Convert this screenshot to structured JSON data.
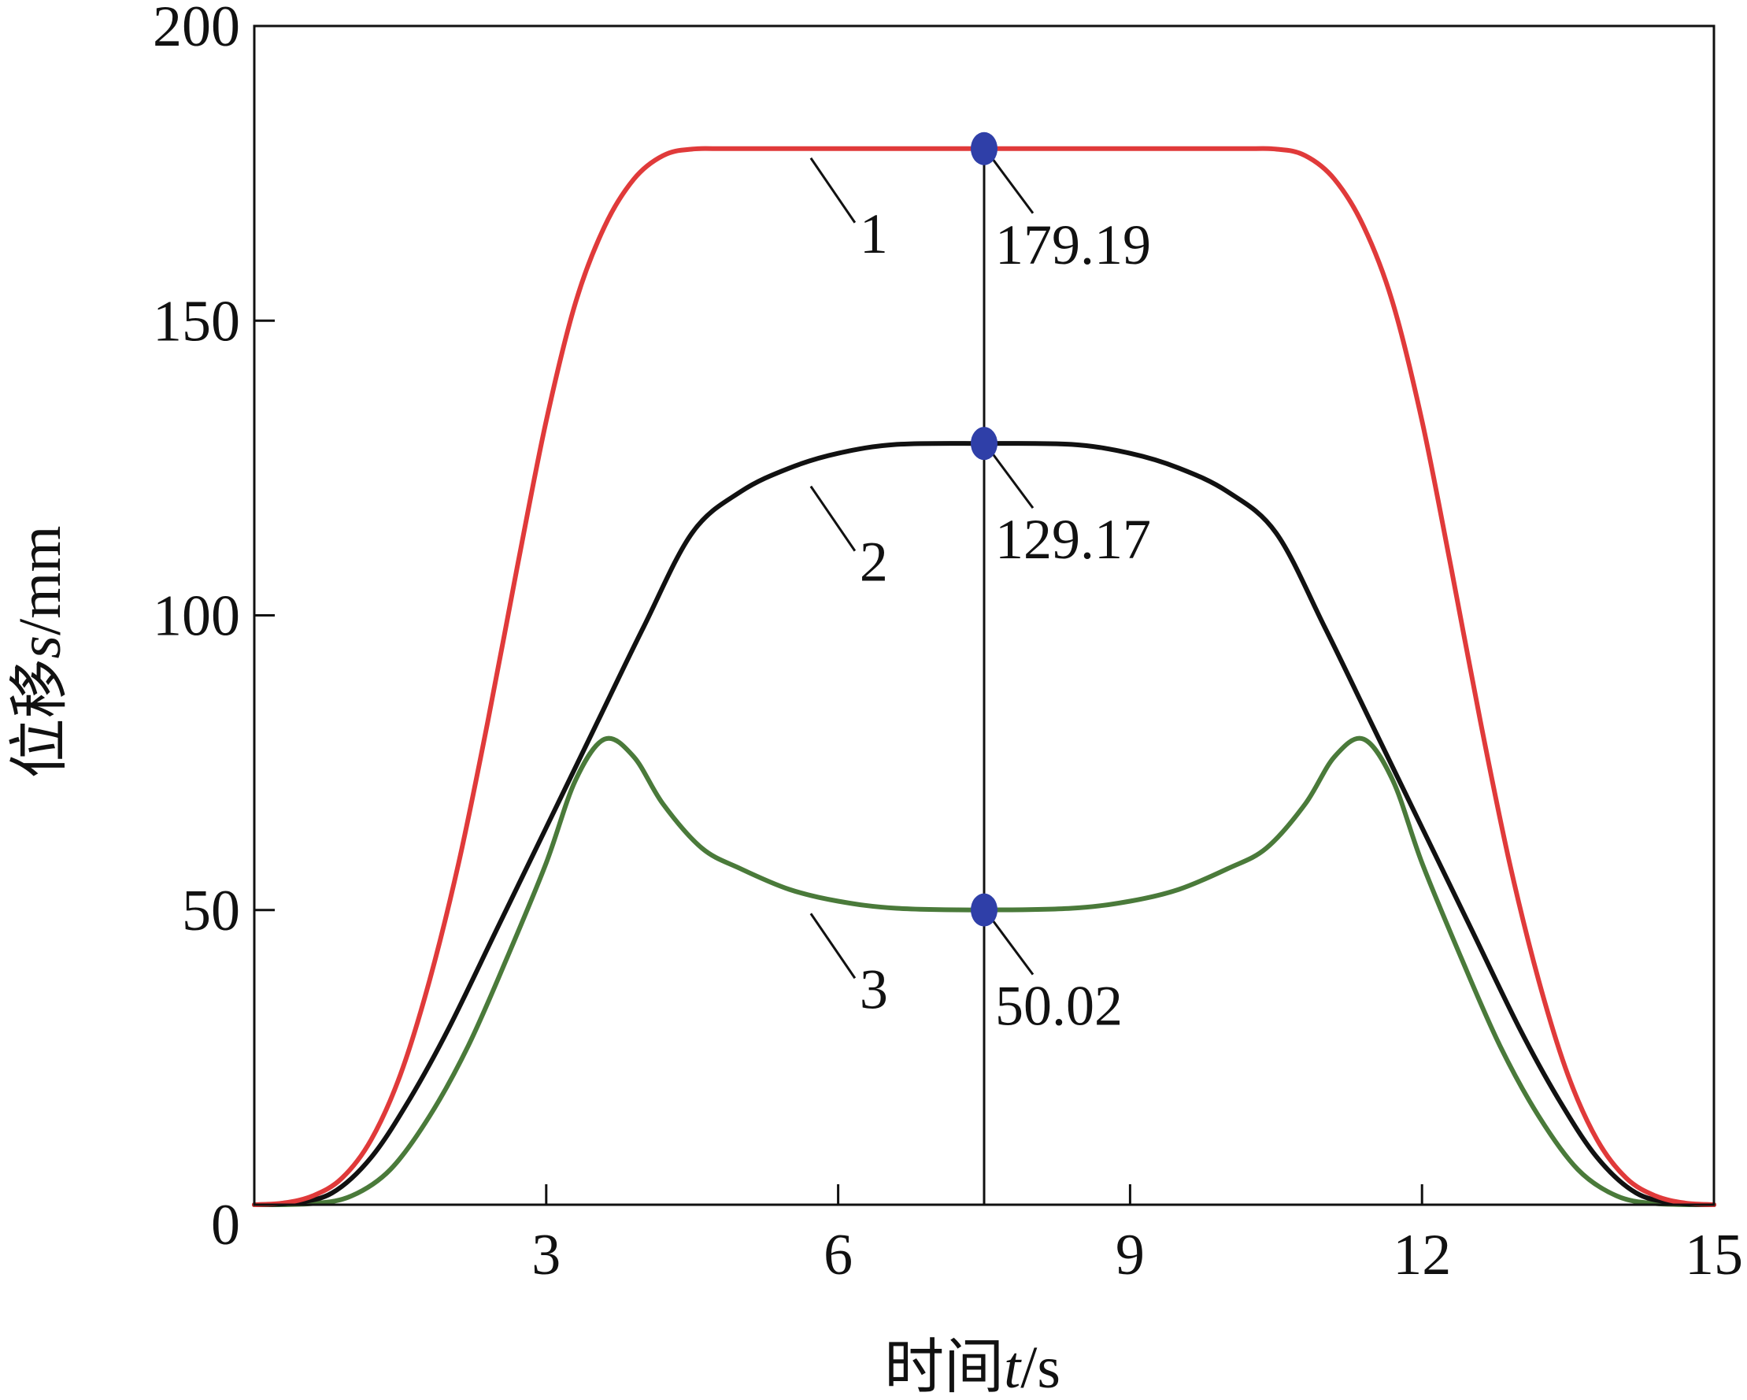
{
  "chart_data": {
    "type": "line",
    "xlabel_prefix": "时间",
    "xlabel_var": "t",
    "xlabel_unit": "/s",
    "ylabel_prefix": "位移",
    "ylabel_var": "s",
    "ylabel_unit": "/mm",
    "xlim": [
      0,
      15
    ],
    "ylim": [
      0,
      200
    ],
    "x_ticks": [
      0,
      3,
      6,
      9,
      12,
      15
    ],
    "y_ticks": [
      0,
      50,
      100,
      150,
      200
    ],
    "marker_time": 7.5,
    "series": [
      {
        "name": "1",
        "color": "#e03a3a",
        "points": [
          [
            0,
            0
          ],
          [
            0.3,
            0.3
          ],
          [
            0.6,
            1.5
          ],
          [
            0.9,
            4.5
          ],
          [
            1.2,
            11
          ],
          [
            1.5,
            22
          ],
          [
            1.8,
            38
          ],
          [
            2.1,
            58
          ],
          [
            2.4,
            82
          ],
          [
            2.7,
            108
          ],
          [
            3.0,
            133
          ],
          [
            3.3,
            153
          ],
          [
            3.6,
            166
          ],
          [
            3.9,
            174
          ],
          [
            4.2,
            178
          ],
          [
            4.5,
            179.1
          ],
          [
            5,
            179.19
          ],
          [
            7.5,
            179.19
          ],
          [
            10,
            179.19
          ],
          [
            10.5,
            179.1
          ],
          [
            10.8,
            178
          ],
          [
            11.1,
            174
          ],
          [
            11.4,
            166
          ],
          [
            11.7,
            153
          ],
          [
            12.0,
            133
          ],
          [
            12.3,
            108
          ],
          [
            12.6,
            82
          ],
          [
            12.9,
            58
          ],
          [
            13.2,
            38
          ],
          [
            13.5,
            22
          ],
          [
            13.8,
            11
          ],
          [
            14.1,
            4.5
          ],
          [
            14.4,
            1.5
          ],
          [
            14.7,
            0.3
          ],
          [
            15,
            0
          ]
        ]
      },
      {
        "name": "2",
        "color": "#111111",
        "points": [
          [
            0,
            0
          ],
          [
            0.4,
            0.3
          ],
          [
            0.8,
            2
          ],
          [
            1.2,
            8
          ],
          [
            1.6,
            18
          ],
          [
            2.0,
            30
          ],
          [
            2.5,
            47
          ],
          [
            3.0,
            64
          ],
          [
            3.5,
            81
          ],
          [
            4.0,
            98
          ],
          [
            4.5,
            114
          ],
          [
            5.0,
            121
          ],
          [
            5.5,
            125
          ],
          [
            6.0,
            127.5
          ],
          [
            6.6,
            129
          ],
          [
            7.5,
            129.17
          ],
          [
            8.4,
            129
          ],
          [
            9.0,
            127.5
          ],
          [
            9.5,
            125
          ],
          [
            10.0,
            121
          ],
          [
            10.5,
            114
          ],
          [
            11.0,
            98
          ],
          [
            11.5,
            81
          ],
          [
            12.0,
            64
          ],
          [
            12.5,
            47
          ],
          [
            13.0,
            30
          ],
          [
            13.4,
            18
          ],
          [
            13.8,
            8
          ],
          [
            14.2,
            2
          ],
          [
            14.6,
            0.3
          ],
          [
            15,
            0
          ]
        ]
      },
      {
        "name": "3",
        "color": "#4a7a3a",
        "points": [
          [
            0,
            0
          ],
          [
            0.6,
            0.2
          ],
          [
            1.0,
            1.5
          ],
          [
            1.4,
            6
          ],
          [
            1.8,
            15
          ],
          [
            2.2,
            27
          ],
          [
            2.6,
            42
          ],
          [
            3.0,
            58
          ],
          [
            3.3,
            72
          ],
          [
            3.6,
            79
          ],
          [
            3.9,
            76
          ],
          [
            4.2,
            68
          ],
          [
            4.6,
            60.5
          ],
          [
            5.0,
            57
          ],
          [
            5.5,
            53.5
          ],
          [
            6.0,
            51.5
          ],
          [
            6.6,
            50.3
          ],
          [
            7.5,
            50.02
          ],
          [
            8.4,
            50.3
          ],
          [
            9.0,
            51.5
          ],
          [
            9.5,
            53.5
          ],
          [
            10.0,
            57
          ],
          [
            10.4,
            60.5
          ],
          [
            10.8,
            68
          ],
          [
            11.1,
            76
          ],
          [
            11.4,
            79
          ],
          [
            11.7,
            72
          ],
          [
            12.0,
            58
          ],
          [
            12.4,
            42
          ],
          [
            12.8,
            27
          ],
          [
            13.2,
            15
          ],
          [
            13.6,
            6
          ],
          [
            14.0,
            1.5
          ],
          [
            14.4,
            0.2
          ],
          [
            15,
            0
          ]
        ]
      }
    ],
    "markers": [
      {
        "x": 7.5,
        "y": 179.19,
        "label": "179.19"
      },
      {
        "x": 7.5,
        "y": 129.17,
        "label": "129.17"
      },
      {
        "x": 7.5,
        "y": 50.02,
        "label": "50.02"
      }
    ],
    "curve_labels": [
      {
        "label": "1",
        "anchor_x": 5.8,
        "anchor_y": 179.19
      },
      {
        "label": "2",
        "anchor_x": 5.8,
        "anchor_y": 123.5
      },
      {
        "label": "3",
        "anchor_x": 5.8,
        "anchor_y": 51
      }
    ],
    "marker_color": "#2f3fa8"
  }
}
